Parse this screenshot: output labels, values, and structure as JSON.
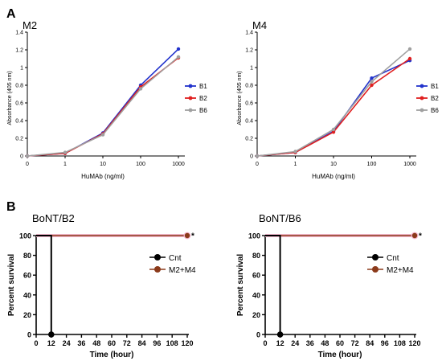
{
  "panels": {
    "a": "A",
    "b": "B"
  },
  "chart_data": [
    {
      "type": "line",
      "title": "M2",
      "xlabel": "HuMAb (ng/ml)",
      "ylabel": "Absorbance (405 nm)",
      "xscale": "log-like categorical",
      "categories": [
        "0",
        "1",
        "10",
        "100",
        "1000"
      ],
      "ylim": [
        0,
        1.4
      ],
      "yticks": [
        "0",
        "0.2",
        "0.4",
        "0.6",
        "0.8",
        "1",
        "1.2",
        "1.4"
      ],
      "legend_position": "right",
      "series": [
        {
          "name": "B1",
          "color": "#2233cc",
          "values": [
            0,
            0.03,
            0.26,
            0.8,
            1.21
          ]
        },
        {
          "name": "B2",
          "color": "#e02020",
          "values": [
            0,
            0.03,
            0.25,
            0.78,
            1.11
          ]
        },
        {
          "name": "B6",
          "color": "#a0a0a0",
          "values": [
            0,
            0.04,
            0.24,
            0.76,
            1.12
          ]
        }
      ]
    },
    {
      "type": "line",
      "title": "M4",
      "xlabel": "HuMAb (ng/ml)",
      "ylabel": "Absorbance (405 nm)",
      "xscale": "log-like categorical",
      "categories": [
        "0",
        "1",
        "10",
        "100",
        "1000"
      ],
      "ylim": [
        0,
        1.4
      ],
      "yticks": [
        "0",
        "0.2",
        "0.4",
        "0.6",
        "0.8",
        "1",
        "1.2",
        "1.4"
      ],
      "legend_position": "right",
      "series": [
        {
          "name": "B1",
          "color": "#2233cc",
          "values": [
            0,
            0.04,
            0.28,
            0.88,
            1.08
          ]
        },
        {
          "name": "B2",
          "color": "#e02020",
          "values": [
            0,
            0.04,
            0.27,
            0.8,
            1.1
          ]
        },
        {
          "name": "B6",
          "color": "#a0a0a0",
          "values": [
            0,
            0.05,
            0.3,
            0.84,
            1.21
          ]
        }
      ]
    },
    {
      "type": "line",
      "chart_kind": "survival (step)",
      "title": "BoNT/B2",
      "xlabel": "Time (hour)",
      "ylabel": "Percent survival",
      "xlim": [
        0,
        120
      ],
      "xticks": [
        "0",
        "12",
        "24",
        "36",
        "48",
        "60",
        "72",
        "84",
        "96",
        "108",
        "120"
      ],
      "ylim": [
        0,
        100
      ],
      "yticks": [
        "0",
        "20",
        "40",
        "60",
        "80",
        "100"
      ],
      "legend_position": "right",
      "significance_marker": "*",
      "series": [
        {
          "name": "Cnt",
          "color": "#000000",
          "points": [
            [
              0,
              100
            ],
            [
              12,
              100
            ],
            [
              12,
              0
            ]
          ]
        },
        {
          "name": "M2+M4",
          "color": "#8b3a1a",
          "points": [
            [
              0,
              100
            ],
            [
              120,
              100
            ]
          ]
        }
      ]
    },
    {
      "type": "line",
      "chart_kind": "survival (step)",
      "title": "BoNT/B6",
      "xlabel": "Time (hour)",
      "ylabel": "Percent survival",
      "xlim": [
        0,
        120
      ],
      "xticks": [
        "0",
        "12",
        "24",
        "36",
        "48",
        "60",
        "72",
        "84",
        "96",
        "108",
        "120"
      ],
      "ylim": [
        0,
        100
      ],
      "yticks": [
        "0",
        "20",
        "40",
        "60",
        "80",
        "100"
      ],
      "legend_position": "right",
      "significance_marker": "*",
      "series": [
        {
          "name": "Cnt",
          "color": "#000000",
          "points": [
            [
              0,
              100
            ],
            [
              12,
              100
            ],
            [
              12,
              0
            ]
          ]
        },
        {
          "name": "M2+M4",
          "color": "#8b3a1a",
          "points": [
            [
              0,
              100
            ],
            [
              120,
              100
            ]
          ]
        }
      ]
    }
  ]
}
